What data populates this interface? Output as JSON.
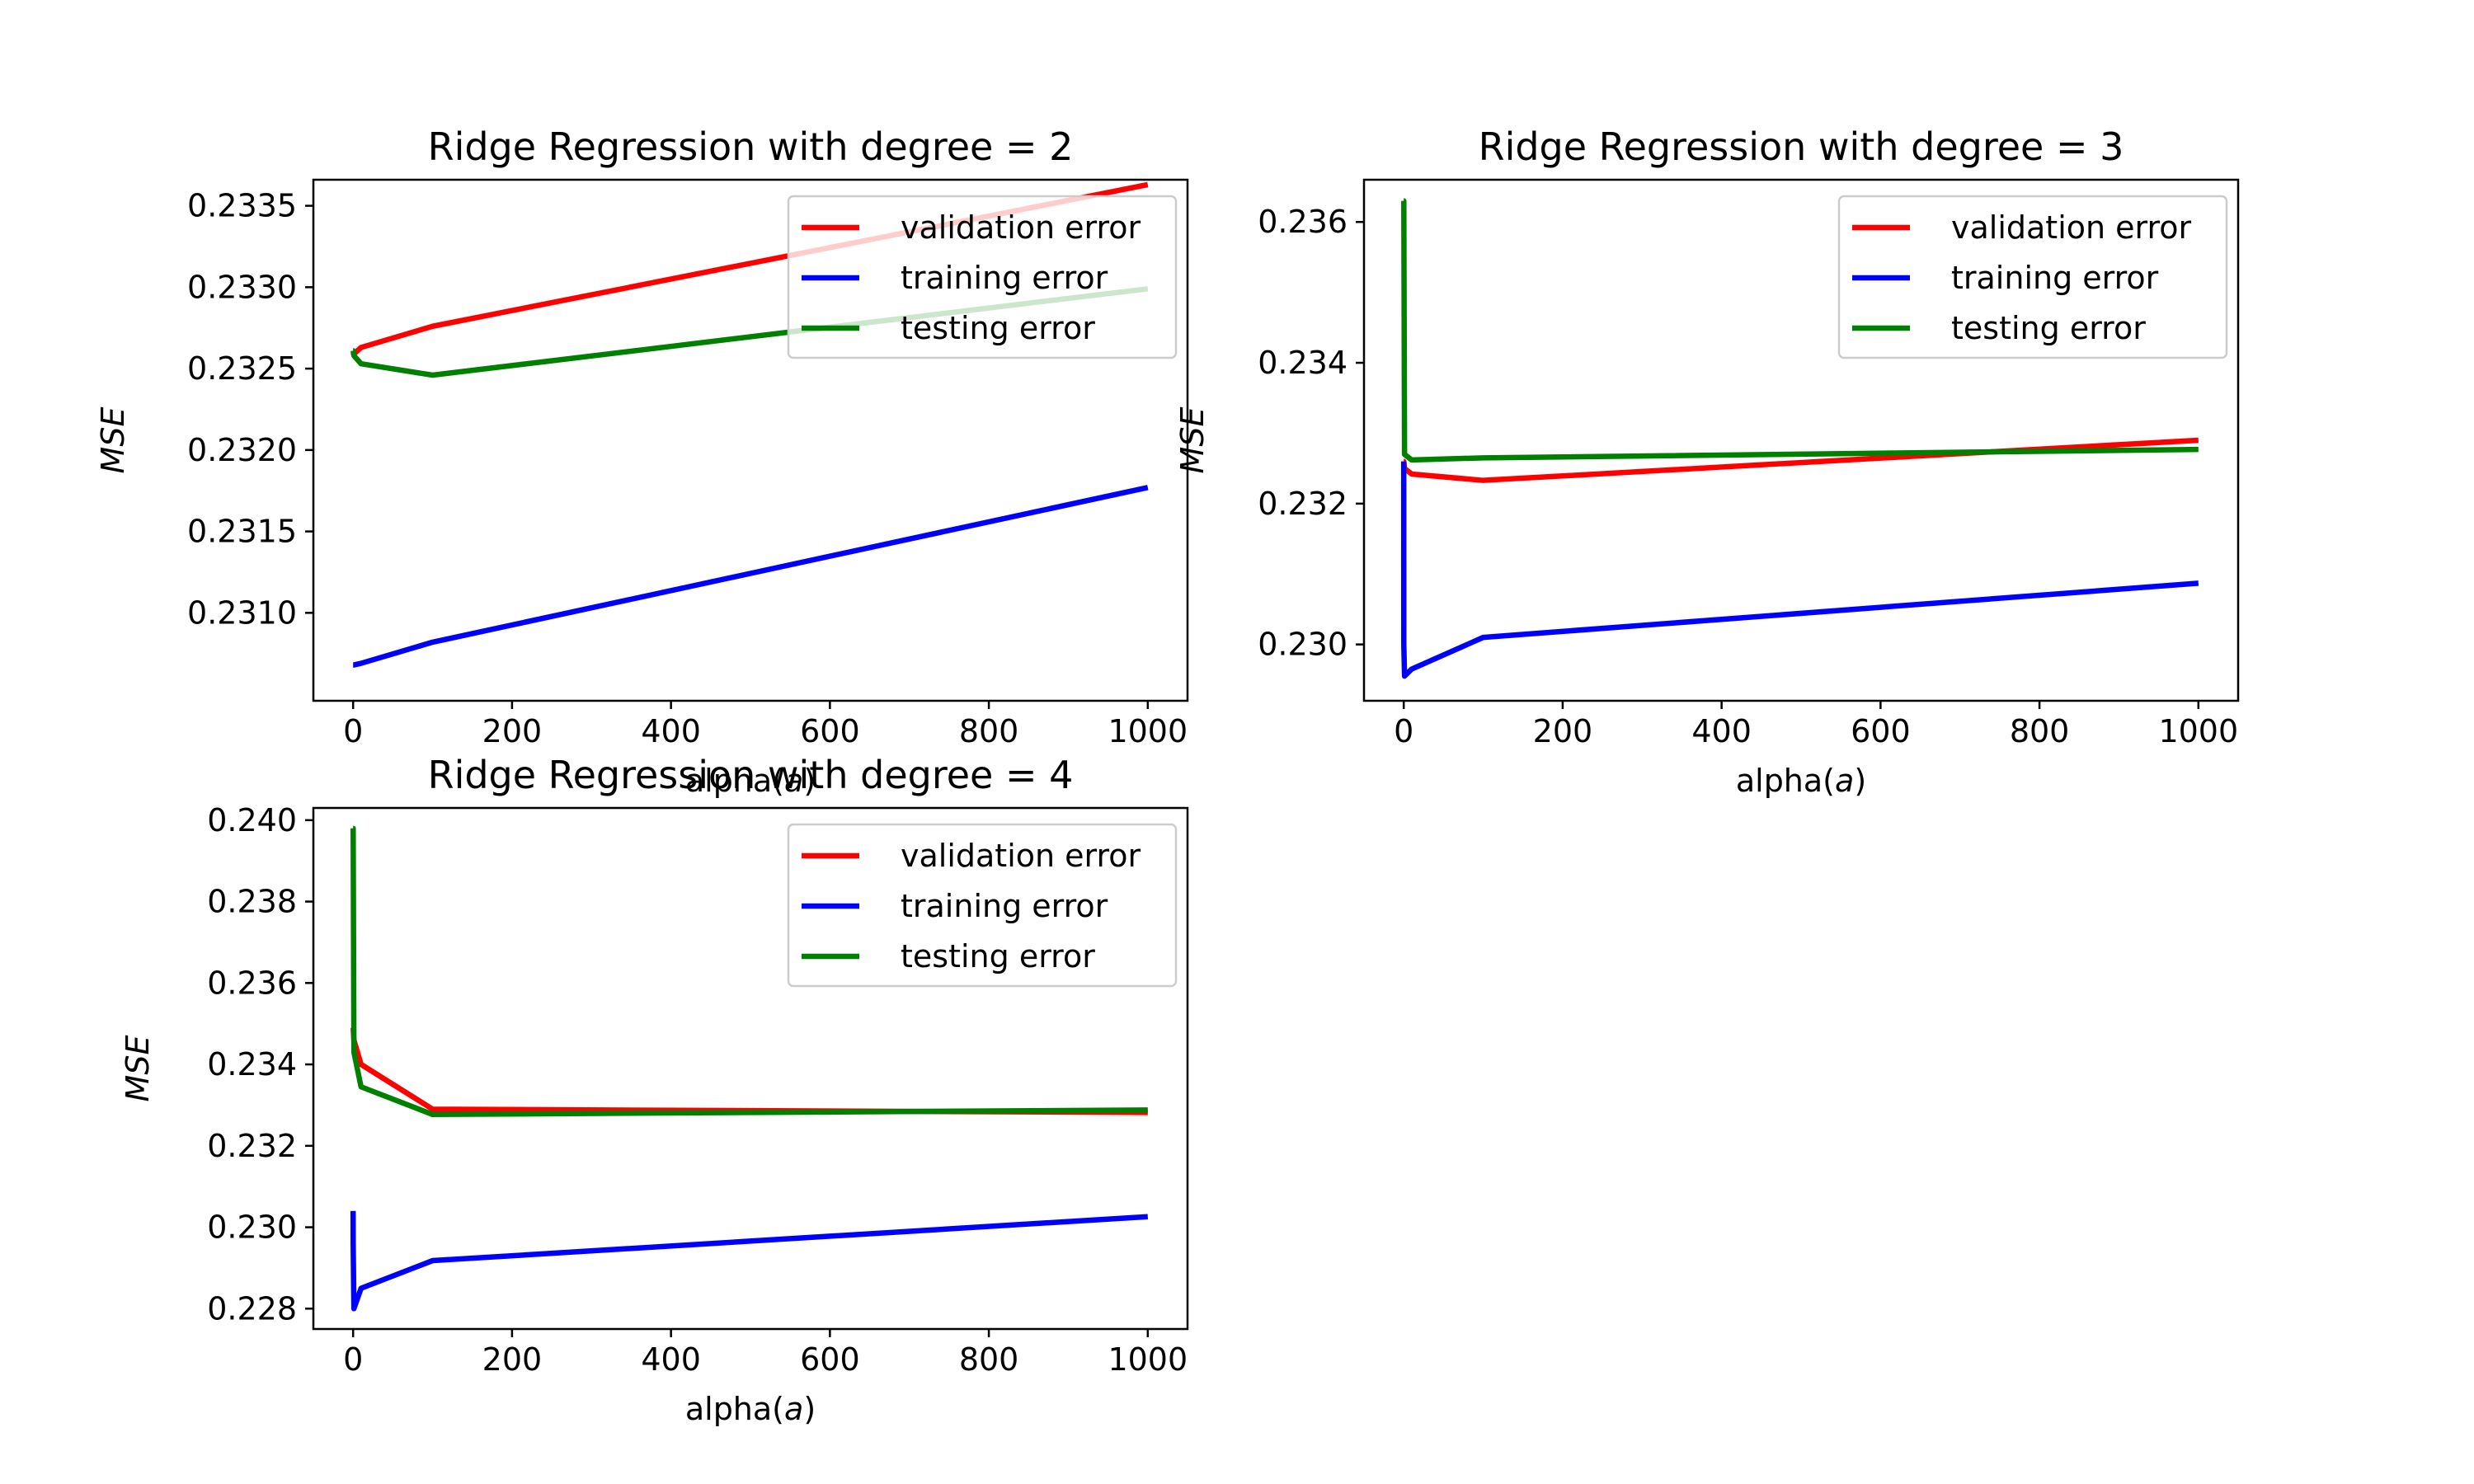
{
  "chart_data": [
    {
      "type": "line",
      "title": "Ridge Regression with degree = 2",
      "xlabel": "alpha(a)",
      "ylabel": "MSE",
      "xlim": [
        -50,
        1050
      ],
      "ylim": [
        0.23046,
        0.23366
      ],
      "xticks": [
        0,
        200,
        400,
        600,
        800,
        1000
      ],
      "yticks": [
        0.231,
        0.2315,
        0.232,
        0.2325,
        0.233,
        0.2335
      ],
      "ytick_labels": [
        "0.2310",
        "0.2315",
        "0.2320",
        "0.2325",
        "0.2330",
        "0.2335"
      ],
      "legend_position": "top-right",
      "x": [
        0.0,
        0.1,
        1,
        10,
        100,
        1000
      ],
      "series": [
        {
          "name": "validation error",
          "color": "#ff0000",
          "values": [
            0.23258,
            0.23258,
            0.23259,
            0.23263,
            0.23276,
            0.23363
          ]
        },
        {
          "name": "training error",
          "color": "#0000ff",
          "values": [
            0.23068,
            0.23068,
            0.23068,
            0.23069,
            0.23082,
            0.23177
          ]
        },
        {
          "name": "testing error",
          "color": "#008000",
          "values": [
            0.23261,
            0.23261,
            0.23258,
            0.23253,
            0.23246,
            0.23299
          ]
        }
      ]
    },
    {
      "type": "line",
      "title": "Ridge Regression with degree = 3",
      "xlabel": "alpha(a)",
      "ylabel": "MSE",
      "xlim": [
        -50,
        1050
      ],
      "ylim": [
        0.2292,
        0.2366
      ],
      "xticks": [
        0,
        200,
        400,
        600,
        800,
        1000
      ],
      "yticks": [
        0.23,
        0.232,
        0.234,
        0.236
      ],
      "ytick_labels": [
        "0.230",
        "0.232",
        "0.234",
        "0.236"
      ],
      "legend_position": "top-right",
      "x": [
        0.0,
        0.1,
        1,
        10,
        100,
        1000
      ],
      "series": [
        {
          "name": "validation error",
          "color": "#ff0000",
          "values": [
            0.2326,
            0.2326,
            0.2325,
            0.23242,
            0.23233,
            0.2329
          ]
        },
        {
          "name": "training error",
          "color": "#0000ff",
          "values": [
            0.2326,
            0.23,
            0.22955,
            0.22965,
            0.2301,
            0.23087
          ]
        },
        {
          "name": "testing error",
          "color": "#008000",
          "values": [
            0.2363,
            0.2363,
            0.2327,
            0.23262,
            0.23265,
            0.23277
          ]
        }
      ]
    },
    {
      "type": "line",
      "title": "Ridge Regression with degree = 4",
      "xlabel": "alpha(a)",
      "ylabel": "MSE",
      "xlim": [
        -50,
        1050
      ],
      "ylim": [
        0.2275,
        0.2403
      ],
      "xticks": [
        0,
        200,
        400,
        600,
        800,
        1000
      ],
      "yticks": [
        0.228,
        0.23,
        0.232,
        0.234,
        0.236,
        0.238,
        0.24
      ],
      "ytick_labels": [
        "0.228",
        "0.230",
        "0.232",
        "0.234",
        "0.236",
        "0.238",
        "0.240"
      ],
      "legend_position": "top-right",
      "x": [
        0.0,
        0.1,
        1,
        10,
        100,
        1000
      ],
      "series": [
        {
          "name": "validation error",
          "color": "#ff0000",
          "values": [
            0.2349,
            0.2349,
            0.2346,
            0.234,
            0.2329,
            0.23282
          ]
        },
        {
          "name": "training error",
          "color": "#0000ff",
          "values": [
            0.2304,
            0.2296,
            0.228,
            0.2285,
            0.22918,
            0.23026
          ]
        },
        {
          "name": "testing error",
          "color": "#008000",
          "values": [
            0.2398,
            0.2398,
            0.2343,
            0.23345,
            0.23277,
            0.23288
          ]
        }
      ]
    }
  ]
}
